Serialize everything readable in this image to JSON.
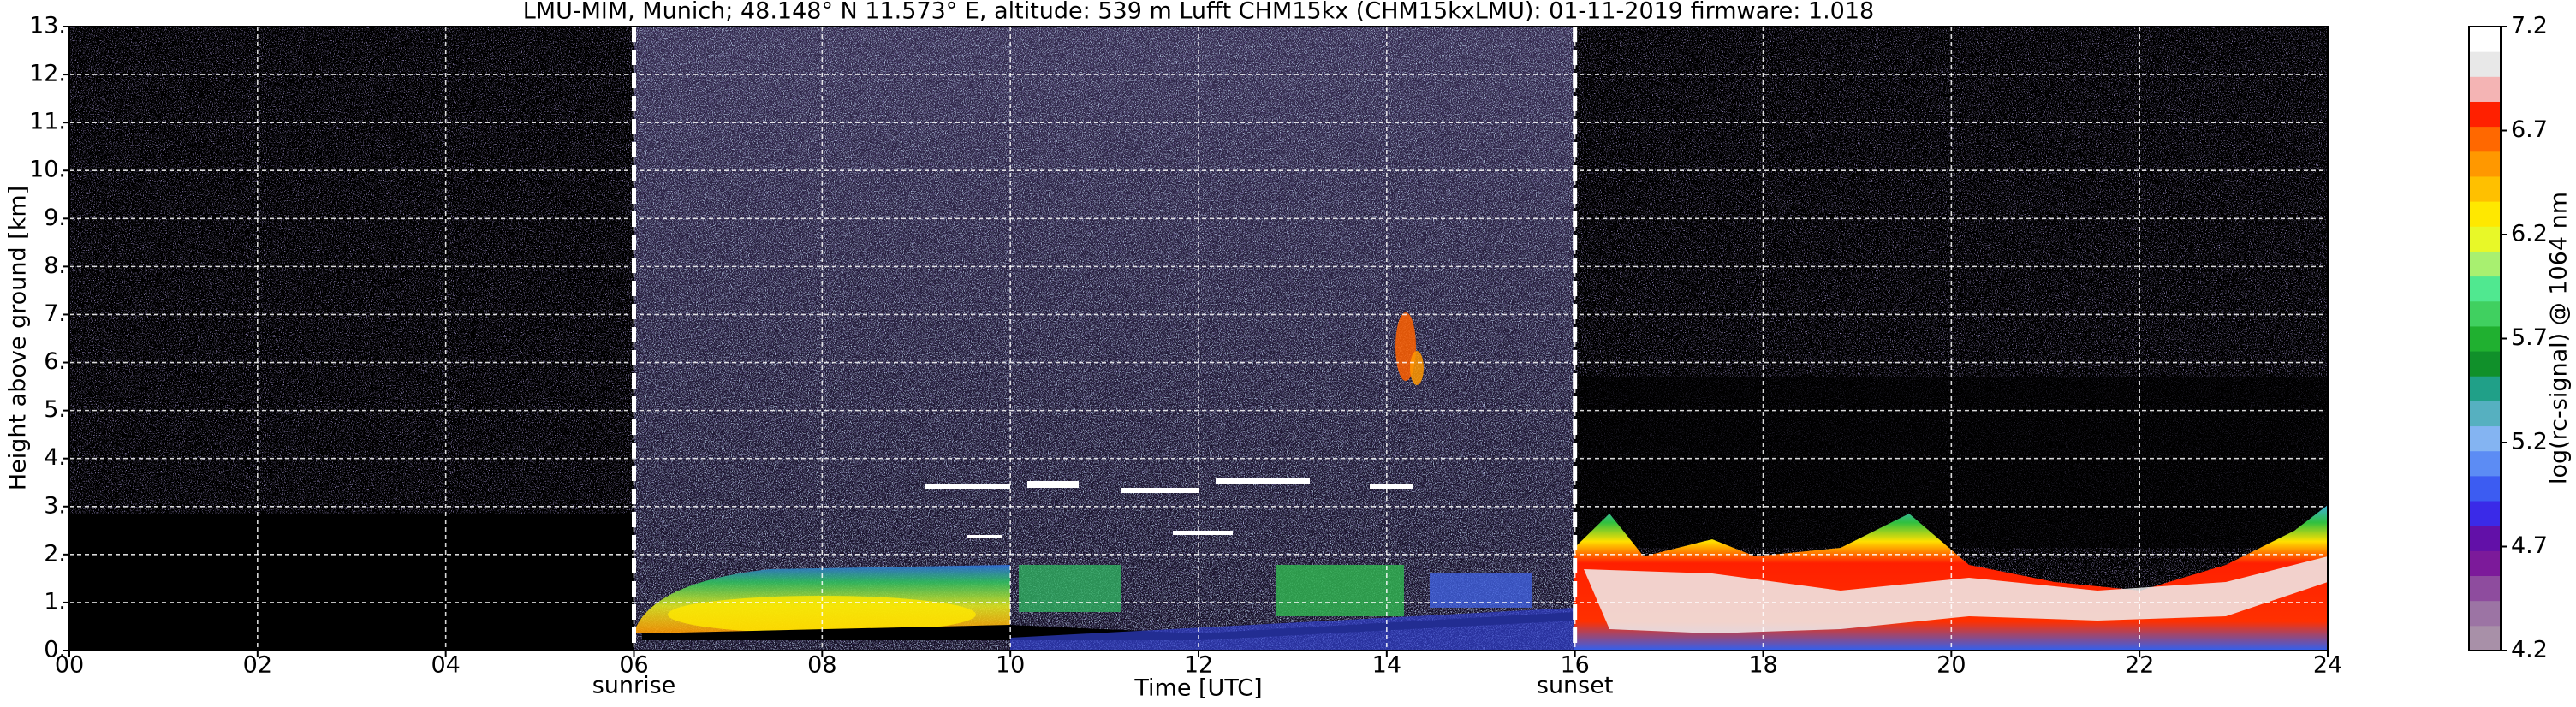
{
  "chart_data": {
    "type": "heatmap",
    "title": "LMU-MIM, Munich; 48.148° N 11.573° E, altitude: 539 m    Lufft CHM15kx (CHM15kxLMU): 01-11-2019    firmware: 1.018",
    "xlabel": "Time [UTC]",
    "ylabel": "Height above ground [km]",
    "xlim": [
      0,
      24
    ],
    "xticks": [
      {
        "value": 0,
        "label": "00"
      },
      {
        "value": 2,
        "label": "02"
      },
      {
        "value": 4,
        "label": "04"
      },
      {
        "value": 6,
        "label": "06"
      },
      {
        "value": 8,
        "label": "08"
      },
      10,
      12,
      14,
      16,
      18,
      20,
      22,
      24
    ],
    "ylim": [
      0,
      13
    ],
    "yticks": [
      {
        "value": 0,
        "label": "0."
      },
      {
        "value": 1,
        "label": "1."
      },
      {
        "value": 2,
        "label": "2."
      },
      {
        "value": 3,
        "label": "3."
      },
      {
        "value": 4,
        "label": "4."
      },
      {
        "value": 5,
        "label": "5."
      },
      {
        "value": 6,
        "label": "6."
      },
      {
        "value": 7,
        "label": "7."
      },
      {
        "value": 8,
        "label": "8."
      },
      {
        "value": 9,
        "label": "9."
      },
      {
        "value": 10,
        "label": "10."
      },
      {
        "value": 11,
        "label": "11."
      },
      {
        "value": 12,
        "label": "12."
      },
      {
        "value": 13,
        "label": "13."
      }
    ],
    "grid": true,
    "annotations": [
      {
        "x": 6,
        "text": "sunrise"
      },
      {
        "x": 16,
        "text": "sunset"
      }
    ],
    "colorbar": {
      "label": "log(rc-signal) @ 1064 nm",
      "lim": [
        4.2,
        7.2
      ],
      "ticks": [
        4.2,
        4.7,
        5.2,
        5.7,
        6.2,
        6.7,
        7.2
      ],
      "colors": [
        "#a890a8",
        "#9c74a4",
        "#8e4c9e",
        "#7c1a9a",
        "#6210a8",
        "#3a2ae8",
        "#3c5cf2",
        "#5c8cf4",
        "#84b4f2",
        "#56b0c0",
        "#20a088",
        "#10902a",
        "#20b030",
        "#40d060",
        "#50e890",
        "#a8f070",
        "#e8f828",
        "#ffe800",
        "#ffc000",
        "#ff9800",
        "#ff6800",
        "#ff2000",
        "#f4b4b4",
        "#e8e8e8",
        "#ffffff"
      ]
    }
  }
}
